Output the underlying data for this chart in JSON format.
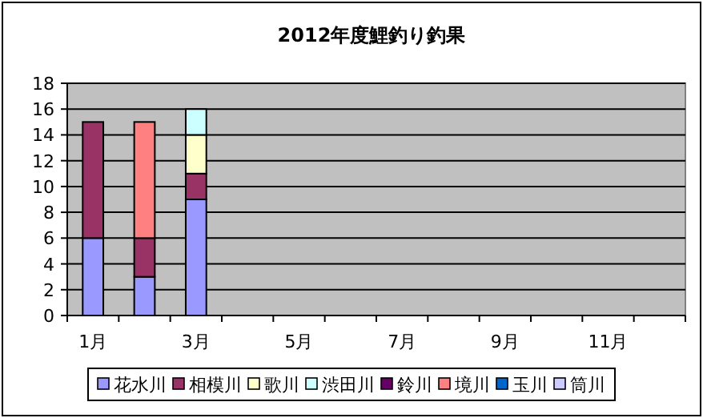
{
  "chart_data": {
    "type": "bar",
    "title": "2012年度鯉釣り釣果",
    "stacked": true,
    "grid": "y",
    "legend": "bottom",
    "categories": [
      "1月",
      null,
      "3月",
      null,
      "5月",
      null,
      "7月",
      null,
      "9月",
      null,
      "11月",
      null
    ],
    "ylim": [
      0,
      18
    ],
    "yticks": [
      0,
      2,
      4,
      6,
      8,
      10,
      12,
      14,
      16,
      18
    ],
    "series": [
      {
        "name": "花水川",
        "color": "#9999ff",
        "values": [
          6,
          3,
          9,
          null,
          null,
          null,
          null,
          null,
          null,
          null,
          null,
          null
        ]
      },
      {
        "name": "相模川",
        "color": "#993366",
        "values": [
          9,
          3,
          2,
          null,
          null,
          null,
          null,
          null,
          null,
          null,
          null,
          null
        ]
      },
      {
        "name": "歌川",
        "color": "#ffffcc",
        "values": [
          null,
          null,
          3,
          null,
          null,
          null,
          null,
          null,
          null,
          null,
          null,
          null
        ]
      },
      {
        "name": "渋田川",
        "color": "#ccffff",
        "values": [
          null,
          null,
          2,
          null,
          null,
          null,
          null,
          null,
          null,
          null,
          null,
          null
        ]
      },
      {
        "name": "鈴川",
        "color": "#660066",
        "values": [
          null,
          null,
          null,
          null,
          null,
          null,
          null,
          null,
          null,
          null,
          null,
          null
        ]
      },
      {
        "name": "境川",
        "color": "#ff8080",
        "values": [
          null,
          9,
          null,
          null,
          null,
          null,
          null,
          null,
          null,
          null,
          null,
          null
        ]
      },
      {
        "name": "玉川",
        "color": "#0066cc",
        "values": [
          null,
          null,
          null,
          null,
          null,
          null,
          null,
          null,
          null,
          null,
          null,
          null
        ]
      },
      {
        "name": "筒川",
        "color": "#ccccff",
        "values": [
          null,
          null,
          null,
          null,
          null,
          null,
          null,
          null,
          null,
          null,
          null,
          null
        ]
      }
    ]
  }
}
